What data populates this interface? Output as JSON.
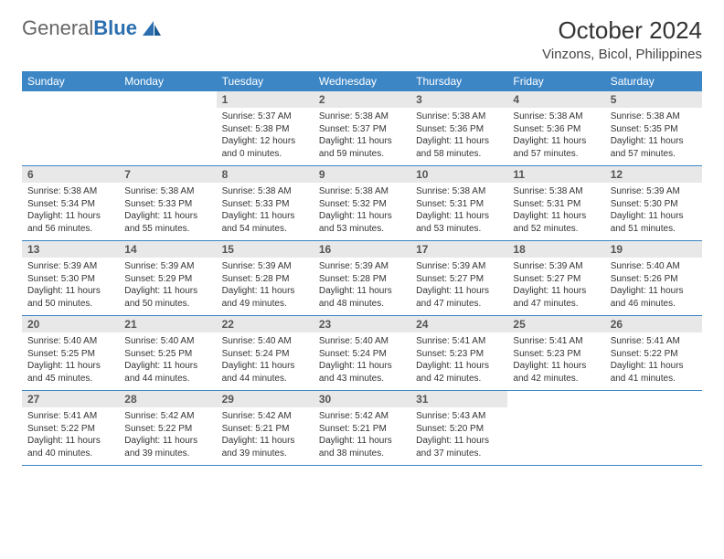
{
  "brand": {
    "part1": "General",
    "part2": "Blue"
  },
  "title": "October 2024",
  "location": "Vinzons, Bicol, Philippines",
  "colors": {
    "header_bg": "#3d86c6",
    "header_text": "#ffffff",
    "daynum_bg": "#e8e8e8",
    "border": "#3d86c6",
    "text": "#333333",
    "brand_gray": "#666666",
    "brand_blue": "#2c6fb0",
    "background": "#ffffff"
  },
  "typography": {
    "font_family": "Arial",
    "title_fontsize": 26,
    "location_fontsize": 15,
    "dayhead_fontsize": 12,
    "daynum_fontsize": 12,
    "body_fontsize": 10
  },
  "day_names": [
    "Sunday",
    "Monday",
    "Tuesday",
    "Wednesday",
    "Thursday",
    "Friday",
    "Saturday"
  ],
  "weeks": [
    [
      null,
      null,
      {
        "n": "1",
        "sunrise": "Sunrise: 5:37 AM",
        "sunset": "Sunset: 5:38 PM",
        "daylight": "Daylight: 12 hours and 0 minutes."
      },
      {
        "n": "2",
        "sunrise": "Sunrise: 5:38 AM",
        "sunset": "Sunset: 5:37 PM",
        "daylight": "Daylight: 11 hours and 59 minutes."
      },
      {
        "n": "3",
        "sunrise": "Sunrise: 5:38 AM",
        "sunset": "Sunset: 5:36 PM",
        "daylight": "Daylight: 11 hours and 58 minutes."
      },
      {
        "n": "4",
        "sunrise": "Sunrise: 5:38 AM",
        "sunset": "Sunset: 5:36 PM",
        "daylight": "Daylight: 11 hours and 57 minutes."
      },
      {
        "n": "5",
        "sunrise": "Sunrise: 5:38 AM",
        "sunset": "Sunset: 5:35 PM",
        "daylight": "Daylight: 11 hours and 57 minutes."
      }
    ],
    [
      {
        "n": "6",
        "sunrise": "Sunrise: 5:38 AM",
        "sunset": "Sunset: 5:34 PM",
        "daylight": "Daylight: 11 hours and 56 minutes."
      },
      {
        "n": "7",
        "sunrise": "Sunrise: 5:38 AM",
        "sunset": "Sunset: 5:33 PM",
        "daylight": "Daylight: 11 hours and 55 minutes."
      },
      {
        "n": "8",
        "sunrise": "Sunrise: 5:38 AM",
        "sunset": "Sunset: 5:33 PM",
        "daylight": "Daylight: 11 hours and 54 minutes."
      },
      {
        "n": "9",
        "sunrise": "Sunrise: 5:38 AM",
        "sunset": "Sunset: 5:32 PM",
        "daylight": "Daylight: 11 hours and 53 minutes."
      },
      {
        "n": "10",
        "sunrise": "Sunrise: 5:38 AM",
        "sunset": "Sunset: 5:31 PM",
        "daylight": "Daylight: 11 hours and 53 minutes."
      },
      {
        "n": "11",
        "sunrise": "Sunrise: 5:38 AM",
        "sunset": "Sunset: 5:31 PM",
        "daylight": "Daylight: 11 hours and 52 minutes."
      },
      {
        "n": "12",
        "sunrise": "Sunrise: 5:39 AM",
        "sunset": "Sunset: 5:30 PM",
        "daylight": "Daylight: 11 hours and 51 minutes."
      }
    ],
    [
      {
        "n": "13",
        "sunrise": "Sunrise: 5:39 AM",
        "sunset": "Sunset: 5:30 PM",
        "daylight": "Daylight: 11 hours and 50 minutes."
      },
      {
        "n": "14",
        "sunrise": "Sunrise: 5:39 AM",
        "sunset": "Sunset: 5:29 PM",
        "daylight": "Daylight: 11 hours and 50 minutes."
      },
      {
        "n": "15",
        "sunrise": "Sunrise: 5:39 AM",
        "sunset": "Sunset: 5:28 PM",
        "daylight": "Daylight: 11 hours and 49 minutes."
      },
      {
        "n": "16",
        "sunrise": "Sunrise: 5:39 AM",
        "sunset": "Sunset: 5:28 PM",
        "daylight": "Daylight: 11 hours and 48 minutes."
      },
      {
        "n": "17",
        "sunrise": "Sunrise: 5:39 AM",
        "sunset": "Sunset: 5:27 PM",
        "daylight": "Daylight: 11 hours and 47 minutes."
      },
      {
        "n": "18",
        "sunrise": "Sunrise: 5:39 AM",
        "sunset": "Sunset: 5:27 PM",
        "daylight": "Daylight: 11 hours and 47 minutes."
      },
      {
        "n": "19",
        "sunrise": "Sunrise: 5:40 AM",
        "sunset": "Sunset: 5:26 PM",
        "daylight": "Daylight: 11 hours and 46 minutes."
      }
    ],
    [
      {
        "n": "20",
        "sunrise": "Sunrise: 5:40 AM",
        "sunset": "Sunset: 5:25 PM",
        "daylight": "Daylight: 11 hours and 45 minutes."
      },
      {
        "n": "21",
        "sunrise": "Sunrise: 5:40 AM",
        "sunset": "Sunset: 5:25 PM",
        "daylight": "Daylight: 11 hours and 44 minutes."
      },
      {
        "n": "22",
        "sunrise": "Sunrise: 5:40 AM",
        "sunset": "Sunset: 5:24 PM",
        "daylight": "Daylight: 11 hours and 44 minutes."
      },
      {
        "n": "23",
        "sunrise": "Sunrise: 5:40 AM",
        "sunset": "Sunset: 5:24 PM",
        "daylight": "Daylight: 11 hours and 43 minutes."
      },
      {
        "n": "24",
        "sunrise": "Sunrise: 5:41 AM",
        "sunset": "Sunset: 5:23 PM",
        "daylight": "Daylight: 11 hours and 42 minutes."
      },
      {
        "n": "25",
        "sunrise": "Sunrise: 5:41 AM",
        "sunset": "Sunset: 5:23 PM",
        "daylight": "Daylight: 11 hours and 42 minutes."
      },
      {
        "n": "26",
        "sunrise": "Sunrise: 5:41 AM",
        "sunset": "Sunset: 5:22 PM",
        "daylight": "Daylight: 11 hours and 41 minutes."
      }
    ],
    [
      {
        "n": "27",
        "sunrise": "Sunrise: 5:41 AM",
        "sunset": "Sunset: 5:22 PM",
        "daylight": "Daylight: 11 hours and 40 minutes."
      },
      {
        "n": "28",
        "sunrise": "Sunrise: 5:42 AM",
        "sunset": "Sunset: 5:22 PM",
        "daylight": "Daylight: 11 hours and 39 minutes."
      },
      {
        "n": "29",
        "sunrise": "Sunrise: 5:42 AM",
        "sunset": "Sunset: 5:21 PM",
        "daylight": "Daylight: 11 hours and 39 minutes."
      },
      {
        "n": "30",
        "sunrise": "Sunrise: 5:42 AM",
        "sunset": "Sunset: 5:21 PM",
        "daylight": "Daylight: 11 hours and 38 minutes."
      },
      {
        "n": "31",
        "sunrise": "Sunrise: 5:43 AM",
        "sunset": "Sunset: 5:20 PM",
        "daylight": "Daylight: 11 hours and 37 minutes."
      },
      null,
      null
    ]
  ]
}
